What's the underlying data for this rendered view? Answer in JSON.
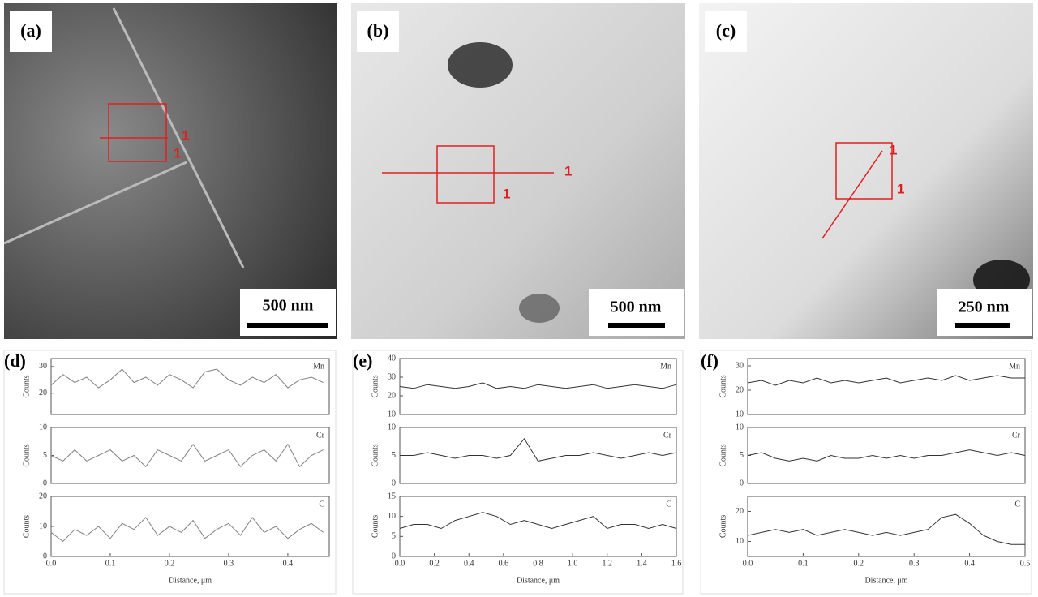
{
  "images": [
    {
      "label": "(a)",
      "scale": "500 nm",
      "markers": [
        "1",
        "1"
      ]
    },
    {
      "label": "(b)",
      "scale": "500 nm",
      "markers": [
        "1",
        "1"
      ]
    },
    {
      "label": "(c)",
      "scale": "250 nm",
      "markers": [
        "1",
        "1"
      ]
    }
  ],
  "chart_data": [
    {
      "type": "line",
      "label": "(d)",
      "xlabel": "Distance, μm",
      "ylabel": "Counts",
      "xlim": [
        0,
        0.47
      ],
      "xticks": [
        {
          "value": 0,
          "label": "0.0"
        },
        0.1,
        0.2,
        0.3,
        0.4
      ],
      "x": [
        0,
        0.02,
        0.04,
        0.06,
        0.08,
        0.1,
        0.12,
        0.14,
        0.16,
        0.18,
        0.2,
        0.22,
        0.24,
        0.26,
        0.28,
        0.3,
        0.32,
        0.34,
        0.36,
        0.38,
        0.4,
        0.42,
        0.44,
        0.46
      ],
      "series": [
        {
          "name": "Mn",
          "color": "#808080",
          "ylim": [
            12,
            33
          ],
          "yticks": [
            20,
            30
          ],
          "values": [
            23,
            27,
            24,
            26,
            22,
            25,
            29,
            24,
            26,
            23,
            27,
            25,
            22,
            28,
            29,
            25,
            23,
            26,
            24,
            27,
            22,
            25,
            26,
            24
          ]
        },
        {
          "name": "Cr",
          "color": "#808080",
          "ylim": [
            0,
            10
          ],
          "yticks": [
            0,
            5,
            10
          ],
          "values": [
            5,
            4,
            6,
            4,
            5,
            6,
            4,
            5,
            3,
            6,
            5,
            4,
            7,
            4,
            5,
            6,
            3,
            5,
            6,
            4,
            7,
            3,
            5,
            6
          ]
        },
        {
          "name": "C",
          "color": "#808080",
          "ylim": [
            0,
            20
          ],
          "yticks": [
            0,
            10,
            20
          ],
          "values": [
            8,
            5,
            9,
            7,
            10,
            6,
            11,
            9,
            13,
            7,
            10,
            8,
            12,
            6,
            9,
            11,
            7,
            13,
            8,
            10,
            6,
            9,
            11,
            8
          ]
        }
      ]
    },
    {
      "type": "line",
      "label": "(e)",
      "xlabel": "Distance, μm",
      "ylabel": "Counts",
      "xlim": [
        0,
        1.6
      ],
      "xticks": [
        {
          "value": 0,
          "label": "0.0"
        },
        0.2,
        0.4,
        0.6,
        0.8,
        {
          "value": 1,
          "label": "1.0"
        },
        1.2,
        1.4,
        1.6
      ],
      "x": [
        0,
        0.08,
        0.16,
        0.24,
        0.32,
        0.4,
        0.48,
        0.56,
        0.64,
        0.72,
        0.8,
        0.88,
        0.96,
        1.04,
        1.12,
        1.2,
        1.28,
        1.36,
        1.44,
        1.52,
        1.6
      ],
      "series": [
        {
          "name": "Mn",
          "color": "#333333",
          "ylim": [
            10,
            40
          ],
          "yticks": [
            10,
            20,
            30,
            40
          ],
          "values": [
            25,
            24,
            26,
            25,
            24,
            25,
            27,
            24,
            25,
            24,
            26,
            25,
            24,
            25,
            26,
            24,
            25,
            26,
            25,
            24,
            26
          ]
        },
        {
          "name": "Cr",
          "color": "#333333",
          "ylim": [
            0,
            10
          ],
          "yticks": [
            0,
            5,
            10
          ],
          "values": [
            5,
            5,
            5.5,
            5,
            4.5,
            5,
            5,
            4.5,
            5,
            8,
            4,
            4.5,
            5,
            5,
            5.5,
            5,
            4.5,
            5,
            5.5,
            5,
            5.5
          ]
        },
        {
          "name": "C",
          "color": "#333333",
          "ylim": [
            0,
            15
          ],
          "yticks": [
            0,
            5,
            10,
            15
          ],
          "values": [
            7,
            8,
            8,
            7,
            9,
            10,
            11,
            10,
            8,
            9,
            8,
            7,
            8,
            9,
            10,
            7,
            8,
            8,
            7,
            8,
            7
          ]
        }
      ]
    },
    {
      "type": "line",
      "label": "(f)",
      "xlabel": "Distance, μm",
      "ylabel": "Counts",
      "xlim": [
        0,
        0.5
      ],
      "xticks": [
        {
          "value": 0,
          "label": "0.0"
        },
        0.1,
        0.2,
        0.3,
        0.4,
        0.5
      ],
      "x": [
        0,
        0.025,
        0.05,
        0.075,
        0.1,
        0.125,
        0.15,
        0.175,
        0.2,
        0.225,
        0.25,
        0.275,
        0.3,
        0.325,
        0.35,
        0.375,
        0.4,
        0.425,
        0.45,
        0.475,
        0.5
      ],
      "series": [
        {
          "name": "Mn",
          "color": "#333333",
          "ylim": [
            10,
            33
          ],
          "yticks": [
            10,
            20,
            30
          ],
          "values": [
            23,
            24,
            22,
            24,
            23,
            25,
            23,
            24,
            23,
            24,
            25,
            23,
            24,
            25,
            24,
            26,
            24,
            25,
            26,
            25,
            25
          ]
        },
        {
          "name": "Cr",
          "color": "#333333",
          "ylim": [
            0,
            10
          ],
          "yticks": [
            0,
            5,
            10
          ],
          "values": [
            5,
            5.5,
            4.5,
            4,
            4.5,
            4,
            5,
            4.5,
            4.5,
            5,
            4.5,
            5,
            4.5,
            5,
            5,
            5.5,
            6,
            5.5,
            5,
            5.5,
            5
          ]
        },
        {
          "name": "C",
          "color": "#333333",
          "ylim": [
            5,
            25
          ],
          "yticks": [
            10,
            20
          ],
          "values": [
            12,
            13,
            14,
            13,
            14,
            12,
            13,
            14,
            13,
            12,
            13,
            12,
            13,
            14,
            18,
            19,
            16,
            12,
            10,
            9,
            9
          ]
        }
      ]
    }
  ]
}
